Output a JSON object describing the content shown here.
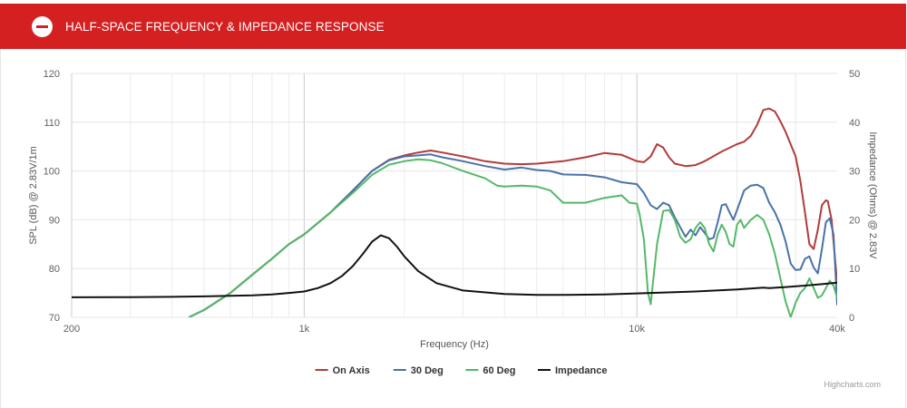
{
  "header": {
    "title": "HALF-SPACE FREQUENCY & IMPEDANCE RESPONSE",
    "icon": "minus-circle-icon"
  },
  "credits": "Highcharts.com",
  "colors": {
    "header": "#d42020",
    "on_axis": "#b23b3b",
    "deg30": "#4a72a8",
    "deg60": "#55b868",
    "impedance": "#111111"
  },
  "chart_data": {
    "type": "line",
    "xlabel": "Frequency (Hz)",
    "ylabel": "SPL (dB) @ 2.83V/1m",
    "y2label": "Impedance (Ohms) @ 2.83V",
    "xscale": "log",
    "xlim": [
      200,
      40000
    ],
    "ylim": [
      70,
      120
    ],
    "y2lim": [
      0,
      50
    ],
    "x_tick_labels": [
      {
        "value": 200,
        "label": "200"
      },
      {
        "value": 1000,
        "label": "1k"
      },
      {
        "value": 10000,
        "label": "10k"
      },
      {
        "value": 40000,
        "label": "40k"
      }
    ],
    "y_ticks": [
      70,
      80,
      90,
      100,
      110,
      120
    ],
    "y2_ticks": [
      0,
      10,
      20,
      30,
      40,
      50
    ],
    "legend_position": "bottom-center",
    "series": [
      {
        "name": "On Axis",
        "axis": "left",
        "color": "#b23b3b",
        "points": [
          [
            450,
            70
          ],
          [
            500,
            71.5
          ],
          [
            600,
            75
          ],
          [
            700,
            78.8
          ],
          [
            800,
            82
          ],
          [
            900,
            85
          ],
          [
            1000,
            87
          ],
          [
            1200,
            91.5
          ],
          [
            1400,
            96
          ],
          [
            1600,
            100
          ],
          [
            1800,
            102.3
          ],
          [
            2000,
            103.2
          ],
          [
            2200,
            103.8
          ],
          [
            2400,
            104.2
          ],
          [
            2600,
            103.8
          ],
          [
            3000,
            103
          ],
          [
            3500,
            102
          ],
          [
            4000,
            101.5
          ],
          [
            4500,
            101.4
          ],
          [
            5000,
            101.5
          ],
          [
            6000,
            102
          ],
          [
            7000,
            102.8
          ],
          [
            8000,
            103.7
          ],
          [
            9000,
            103.3
          ],
          [
            10000,
            102
          ],
          [
            10500,
            101.8
          ],
          [
            11000,
            103
          ],
          [
            11500,
            105.5
          ],
          [
            12000,
            104.8
          ],
          [
            12500,
            102.8
          ],
          [
            13000,
            101.5
          ],
          [
            14000,
            101
          ],
          [
            15000,
            101.2
          ],
          [
            16000,
            102
          ],
          [
            18000,
            104
          ],
          [
            20000,
            105.5
          ],
          [
            21000,
            106
          ],
          [
            22000,
            107.2
          ],
          [
            23000,
            109.5
          ],
          [
            24000,
            112.5
          ],
          [
            25000,
            112.8
          ],
          [
            26000,
            112.2
          ],
          [
            27000,
            110.2
          ],
          [
            28000,
            108
          ],
          [
            30000,
            103
          ],
          [
            31000,
            98
          ],
          [
            32000,
            91.5
          ],
          [
            33000,
            85
          ],
          [
            34000,
            84
          ],
          [
            35000,
            88
          ],
          [
            36000,
            93
          ],
          [
            37000,
            94
          ],
          [
            37500,
            93.8
          ],
          [
            38500,
            90
          ],
          [
            40000,
            77
          ]
        ]
      },
      {
        "name": "30 Deg",
        "axis": "left",
        "color": "#4a72a8",
        "points": [
          [
            450,
            70
          ],
          [
            500,
            71.5
          ],
          [
            600,
            75
          ],
          [
            700,
            78.8
          ],
          [
            800,
            82
          ],
          [
            900,
            85
          ],
          [
            1000,
            87
          ],
          [
            1200,
            91.5
          ],
          [
            1400,
            96
          ],
          [
            1600,
            100
          ],
          [
            1800,
            102.2
          ],
          [
            2000,
            103
          ],
          [
            2200,
            103.2
          ],
          [
            2400,
            103.4
          ],
          [
            2600,
            102.8
          ],
          [
            3000,
            102
          ],
          [
            3500,
            101
          ],
          [
            4000,
            100.3
          ],
          [
            4500,
            100.7
          ],
          [
            5000,
            100.2
          ],
          [
            5500,
            100
          ],
          [
            6000,
            99.3
          ],
          [
            7000,
            99.2
          ],
          [
            8000,
            98.7
          ],
          [
            9000,
            97.7
          ],
          [
            10000,
            97.3
          ],
          [
            10500,
            95.5
          ],
          [
            11000,
            93
          ],
          [
            11500,
            92.2
          ],
          [
            12000,
            93.5
          ],
          [
            12500,
            93
          ],
          [
            13000,
            90.5
          ],
          [
            14000,
            86.5
          ],
          [
            14500,
            88
          ],
          [
            15000,
            86.8
          ],
          [
            15500,
            88.5
          ],
          [
            16000,
            87.3
          ],
          [
            16500,
            86
          ],
          [
            17000,
            86.3
          ],
          [
            17500,
            89.5
          ],
          [
            18000,
            93
          ],
          [
            18500,
            93.2
          ],
          [
            19000,
            91.5
          ],
          [
            19500,
            90
          ],
          [
            20000,
            92
          ],
          [
            21000,
            96
          ],
          [
            22000,
            97
          ],
          [
            23000,
            97.2
          ],
          [
            24000,
            96.5
          ],
          [
            25000,
            93.5
          ],
          [
            26000,
            91.5
          ],
          [
            27000,
            89
          ],
          [
            28000,
            85.5
          ],
          [
            29000,
            81
          ],
          [
            30000,
            79.7
          ],
          [
            31000,
            79.8
          ],
          [
            32000,
            82
          ],
          [
            33000,
            82.5
          ],
          [
            34000,
            80.2
          ],
          [
            35000,
            79
          ],
          [
            36000,
            84
          ],
          [
            37000,
            89.5
          ],
          [
            38000,
            90.3
          ],
          [
            39000,
            87
          ],
          [
            40000,
            72.5
          ]
        ]
      },
      {
        "name": "60 Deg",
        "axis": "left",
        "color": "#55b868",
        "points": [
          [
            450,
            70
          ],
          [
            500,
            71.5
          ],
          [
            600,
            75
          ],
          [
            700,
            78.8
          ],
          [
            800,
            82
          ],
          [
            900,
            85
          ],
          [
            1000,
            87
          ],
          [
            1200,
            91.5
          ],
          [
            1400,
            95.5
          ],
          [
            1600,
            99.2
          ],
          [
            1800,
            101.3
          ],
          [
            2000,
            102
          ],
          [
            2200,
            102.4
          ],
          [
            2400,
            102.2
          ],
          [
            2600,
            101.6
          ],
          [
            3000,
            100
          ],
          [
            3500,
            98.5
          ],
          [
            3800,
            97
          ],
          [
            4000,
            96.8
          ],
          [
            4500,
            97
          ],
          [
            5000,
            96.8
          ],
          [
            5500,
            96
          ],
          [
            6000,
            93.5
          ],
          [
            7000,
            93.5
          ],
          [
            8000,
            94.5
          ],
          [
            9000,
            95
          ],
          [
            9500,
            93.5
          ],
          [
            10000,
            93.3
          ],
          [
            10200,
            91
          ],
          [
            10500,
            86
          ],
          [
            10800,
            75
          ],
          [
            11000,
            72.7
          ],
          [
            11500,
            85
          ],
          [
            12000,
            91.8
          ],
          [
            12500,
            92
          ],
          [
            13000,
            90
          ],
          [
            13500,
            86.5
          ],
          [
            14000,
            85.3
          ],
          [
            14500,
            86
          ],
          [
            15000,
            88.3
          ],
          [
            15500,
            89.5
          ],
          [
            16000,
            88.3
          ],
          [
            16500,
            85
          ],
          [
            17000,
            83.5
          ],
          [
            17500,
            87
          ],
          [
            18000,
            89
          ],
          [
            18500,
            87.5
          ],
          [
            19000,
            85
          ],
          [
            19500,
            84.5
          ],
          [
            20000,
            89
          ],
          [
            20500,
            90
          ],
          [
            21000,
            88.3
          ],
          [
            22000,
            90
          ],
          [
            23000,
            91
          ],
          [
            24000,
            90
          ],
          [
            25000,
            87
          ],
          [
            26000,
            83
          ],
          [
            27000,
            78
          ],
          [
            28000,
            73.2
          ],
          [
            29000,
            70
          ],
          [
            30000,
            73
          ],
          [
            31000,
            75
          ],
          [
            32000,
            76
          ],
          [
            33000,
            78
          ],
          [
            34000,
            76
          ],
          [
            35000,
            74
          ],
          [
            36000,
            74.5
          ],
          [
            37000,
            76
          ],
          [
            38000,
            77.5
          ],
          [
            39000,
            76.5
          ],
          [
            40000,
            74
          ]
        ]
      },
      {
        "name": "Impedance",
        "axis": "right",
        "color": "#111111",
        "points": [
          [
            200,
            4.1
          ],
          [
            300,
            4.15
          ],
          [
            400,
            4.2
          ],
          [
            500,
            4.3
          ],
          [
            600,
            4.4
          ],
          [
            700,
            4.5
          ],
          [
            800,
            4.7
          ],
          [
            900,
            5
          ],
          [
            1000,
            5.3
          ],
          [
            1100,
            6
          ],
          [
            1200,
            7
          ],
          [
            1300,
            8.5
          ],
          [
            1400,
            10.5
          ],
          [
            1500,
            13
          ],
          [
            1600,
            15.5
          ],
          [
            1700,
            16.8
          ],
          [
            1800,
            16.2
          ],
          [
            1900,
            14.5
          ],
          [
            2000,
            12.5
          ],
          [
            2200,
            9.5
          ],
          [
            2500,
            7
          ],
          [
            3000,
            5.5
          ],
          [
            4000,
            4.8
          ],
          [
            5000,
            4.6
          ],
          [
            6000,
            4.6
          ],
          [
            8000,
            4.7
          ],
          [
            10000,
            4.9
          ],
          [
            15000,
            5.3
          ],
          [
            20000,
            5.7
          ],
          [
            24000,
            6.1
          ],
          [
            25000,
            6
          ],
          [
            28000,
            6.2
          ],
          [
            32000,
            6.5
          ],
          [
            36000,
            6.8
          ],
          [
            40000,
            7.1
          ]
        ]
      }
    ]
  }
}
